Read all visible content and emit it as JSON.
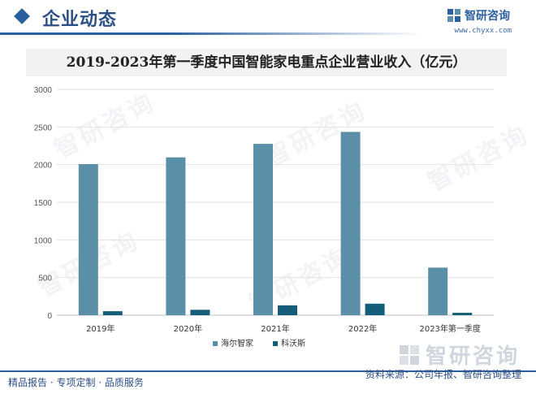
{
  "header": {
    "section_title": "企业动态",
    "brand_name": "智研咨询",
    "brand_url": "www.chyxx.com"
  },
  "colors": {
    "accent": "#2b5f9e",
    "series_1": "#5b8fa8",
    "series_2": "#155e7a"
  },
  "chart_data": {
    "type": "bar",
    "title": "2019-2023年第一季度中国智能家电重点企业营业收入（亿元）",
    "xlabel": "",
    "ylabel": "",
    "categories": [
      "2019年",
      "2020年",
      "2021年",
      "2022年",
      "2023年第一季度"
    ],
    "series": [
      {
        "name": "海尔智家",
        "values": [
          2007,
          2097,
          2276,
          2435,
          632
        ]
      },
      {
        "name": "科沃斯",
        "values": [
          53,
          72,
          131,
          153,
          32
        ]
      }
    ],
    "ylim": [
      0,
      3000
    ],
    "yticks": [
      0,
      500,
      1000,
      1500,
      2000,
      2500,
      3000
    ],
    "grid": true,
    "legend_position": "bottom"
  },
  "footer": {
    "left": "精品报告 · 专项定制 · 品质服务",
    "source": "资料来源：公司年报、智研咨询整理"
  },
  "bottom_logo": "智研咨询",
  "watermark_text": "智研咨询"
}
